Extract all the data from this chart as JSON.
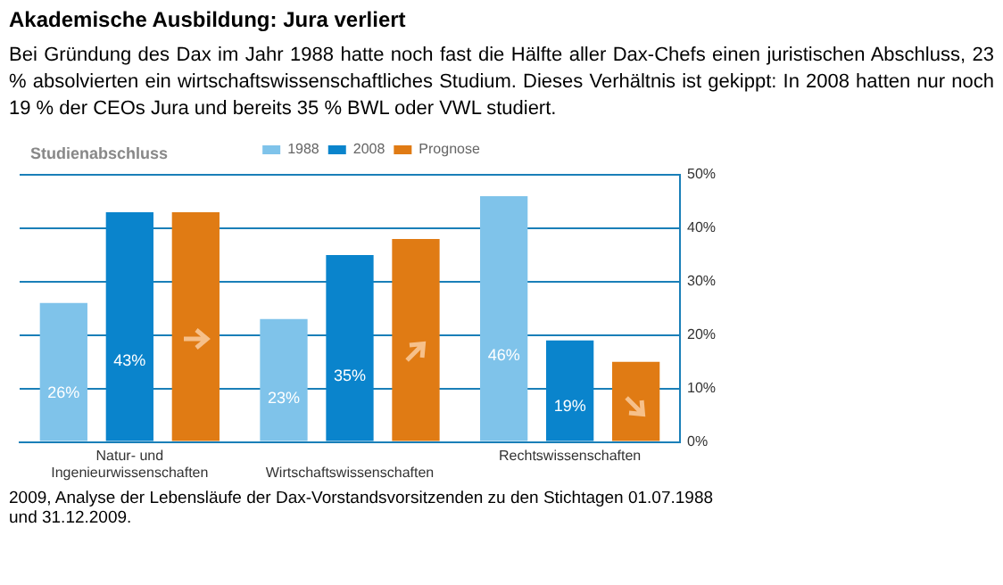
{
  "chart_data": {
    "type": "bar",
    "title": "Akademische Ausbildung: Jura verliert",
    "subtitle": "Bei Gründung des Dax im Jahr 1988 hatte noch fast die Hälfte aller Dax-Chefs einen juristischen Abschluss, 23 % absolvierten ein wirtschaftswissenschaftliches Studium. Dieses Verhältnis ist gekippt: In 2008 hatten nur noch 19 % der CEOs Jura und bereits 35 % BWL oder VWL studiert.",
    "annotations": [
      "Studienabschluss",
      "2009, Analyse der Lebensläufe der Dax-Vorstandsvorsitzenden zu den Stichtagen 01.07.1988 und 31.12.2009."
    ],
    "categories": [
      "Natur- und Ingenieurwissenschaften",
      "Wirtschaftswissenschaften",
      "Rechtswissenschaften"
    ],
    "series": [
      {
        "name": "1988",
        "color": "#7fc3ea",
        "values": [
          26,
          23,
          46
        ],
        "value_labels": [
          "26%",
          "23%",
          "46%"
        ]
      },
      {
        "name": "2008",
        "color": "#0a84cc",
        "values": [
          43,
          35,
          19
        ],
        "value_labels": [
          "43%",
          "35%",
          "19%"
        ]
      },
      {
        "name": "Prognose",
        "color": "#e07b14",
        "values": [
          43,
          38,
          15
        ]
      }
    ],
    "ylim": [
      0,
      50
    ],
    "yticks": [
      {
        "value": 0,
        "label": "0%"
      },
      {
        "value": 10,
        "label": "10%"
      },
      {
        "value": 20,
        "label": "20%"
      },
      {
        "value": 30,
        "label": "30%"
      },
      {
        "value": 40,
        "label": "40%"
      },
      {
        "value": 50,
        "label": "50%"
      }
    ],
    "grid": "y",
    "legend": "top"
  }
}
